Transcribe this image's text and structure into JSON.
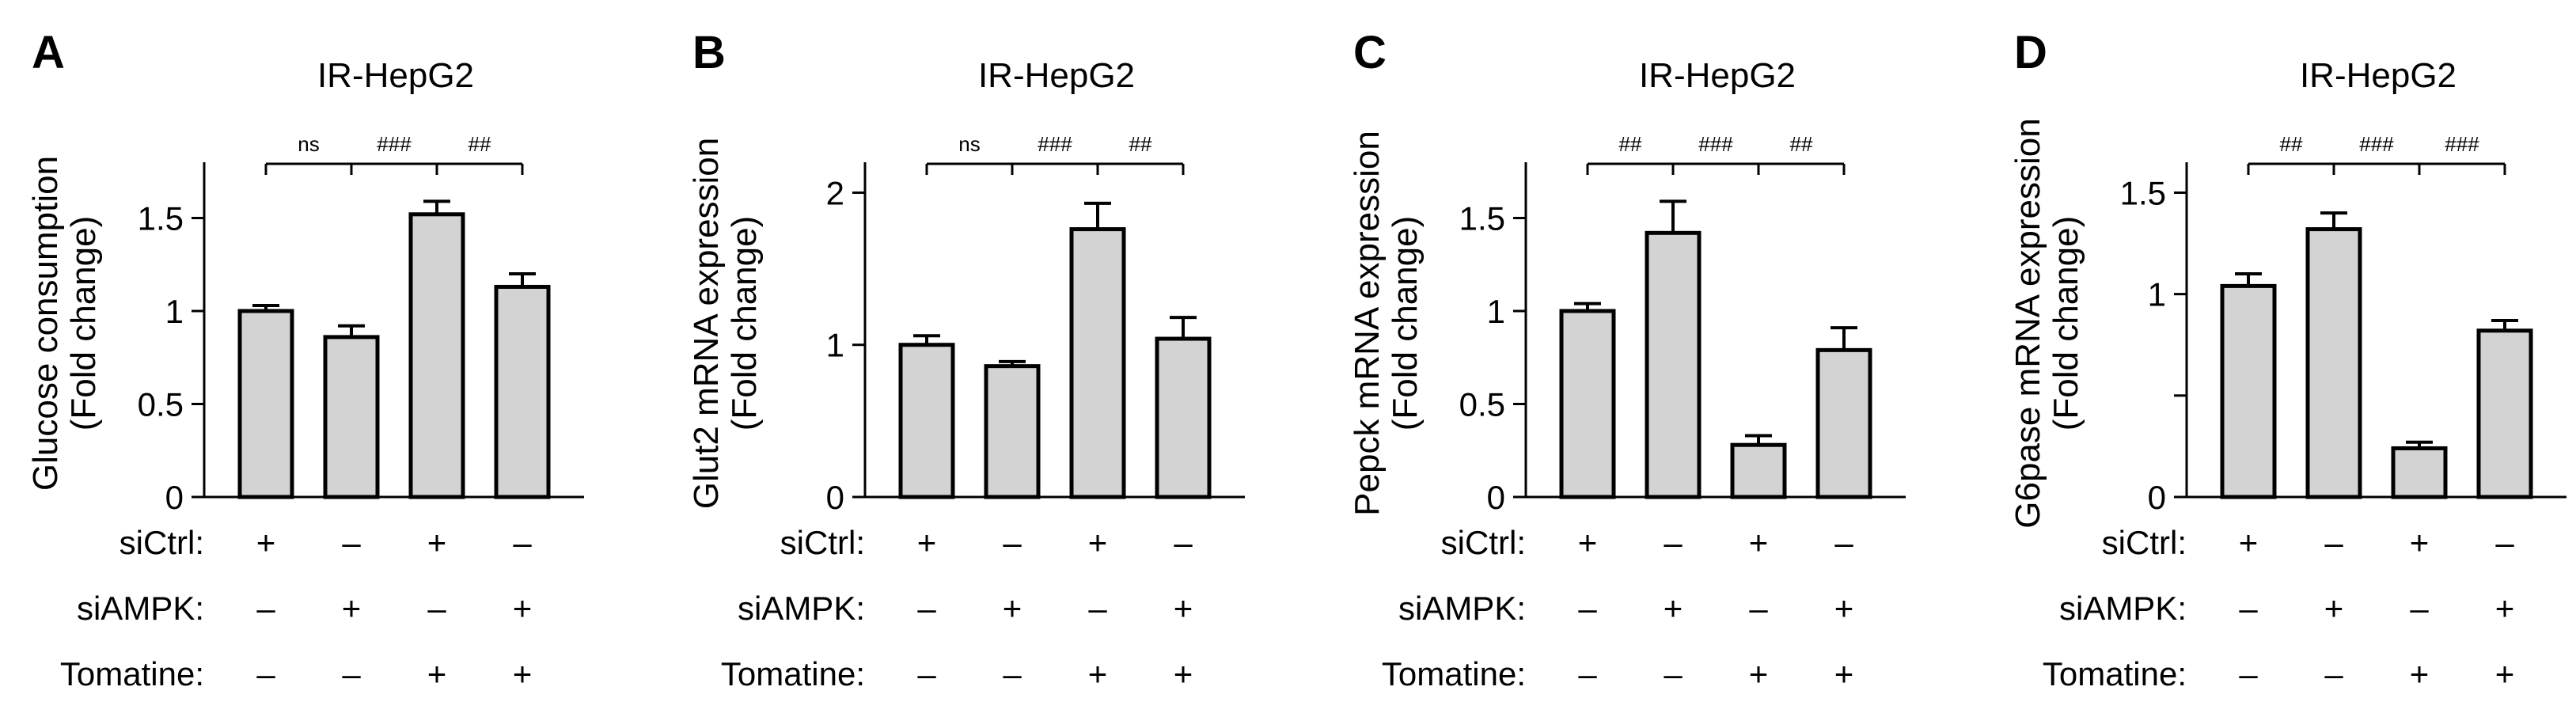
{
  "chart_data": [
    {
      "type": "bar",
      "panel": "A",
      "title": "IR-HepG2",
      "ylabel": "Glucose consumption",
      "ylabel2": "(Fold change)",
      "ylim": [
        0,
        1.8
      ],
      "yticks": [
        0,
        0.5,
        1,
        1.5
      ],
      "ytick_labels": [
        "0",
        "0.5",
        "1",
        "1.5"
      ],
      "values": [
        1.0,
        0.86,
        1.52,
        1.13
      ],
      "errors": [
        0.03,
        0.06,
        0.07,
        0.07
      ],
      "significance": [
        "ns",
        "###",
        "##"
      ]
    },
    {
      "type": "bar",
      "panel": "B",
      "title": "IR-HepG2",
      "ylabel": "Glut2 mRNA expression",
      "ylabel2": "(Fold change)",
      "ylim": [
        0,
        2.2
      ],
      "yticks": [
        0,
        1,
        2
      ],
      "ytick_labels": [
        "0",
        "1",
        "2"
      ],
      "values": [
        1.0,
        0.86,
        1.76,
        1.04
      ],
      "errors": [
        0.06,
        0.03,
        0.17,
        0.14
      ],
      "significance": [
        "ns",
        "###",
        "##"
      ]
    },
    {
      "type": "bar",
      "panel": "C",
      "title": "IR-HepG2",
      "ylabel": "Pepck mRNA expression",
      "ylabel2": "(Fold change)",
      "ylim": [
        0,
        1.8
      ],
      "yticks": [
        0,
        0.5,
        1,
        1.5
      ],
      "ytick_labels": [
        "0",
        "0.5",
        "1",
        "1.5"
      ],
      "values": [
        1.0,
        1.42,
        0.28,
        0.79
      ],
      "errors": [
        0.04,
        0.17,
        0.05,
        0.12
      ],
      "significance": [
        "##",
        "###",
        "##"
      ]
    },
    {
      "type": "bar",
      "panel": "D",
      "title": "IR-HepG2",
      "ylabel": "G6pase mRNA expression",
      "ylabel2": "(Fold change)",
      "ylim": [
        0,
        1.65
      ],
      "yticks": [
        0,
        0.5,
        1,
        1.5
      ],
      "ytick_labels": [
        "0",
        "",
        "1",
        "1.5"
      ],
      "values": [
        1.04,
        1.32,
        0.24,
        0.82
      ],
      "errors": [
        0.06,
        0.08,
        0.03,
        0.05
      ],
      "significance": [
        "##",
        "###",
        "###"
      ]
    }
  ],
  "conditions": {
    "labels": [
      "siCtrl:",
      "siAMPK:",
      "Tomatine:"
    ],
    "siCtrl": [
      "+",
      "–",
      "+",
      "–"
    ],
    "siAMPK": [
      "–",
      "+",
      "–",
      "+"
    ],
    "Tomatine": [
      "–",
      "–",
      "+",
      "+"
    ]
  },
  "colors": {
    "bar_fill": "#d3d3d3",
    "line": "#000000"
  }
}
